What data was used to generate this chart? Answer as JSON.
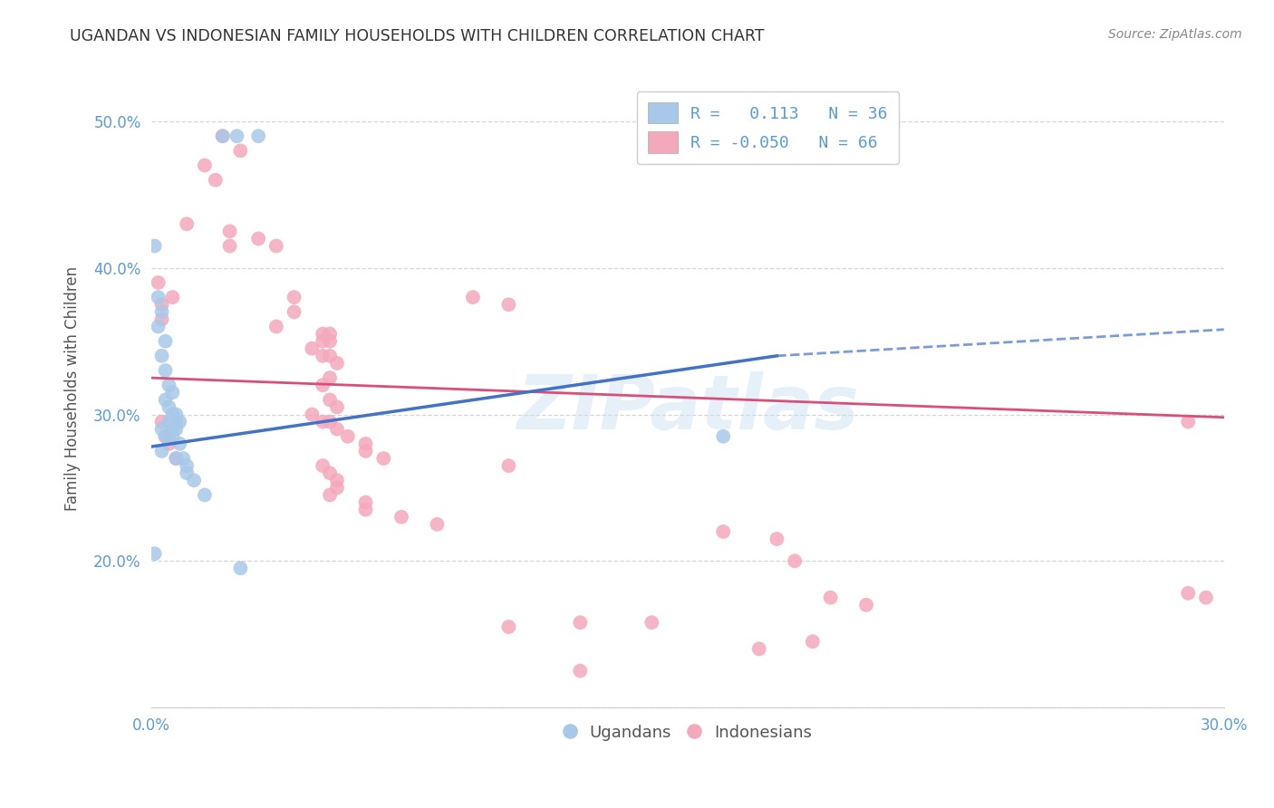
{
  "title": "UGANDAN VS INDONESIAN FAMILY HOUSEHOLDS WITH CHILDREN CORRELATION CHART",
  "source": "Source: ZipAtlas.com",
  "ylabel": "Family Households with Children",
  "legend_label1": "R =   0.113   N = 36",
  "legend_label2": "R = -0.050   N = 66",
  "legend_bottom_label1": "Ugandans",
  "legend_bottom_label2": "Indonesians",
  "ugandan_color": "#a8c8e8",
  "indonesian_color": "#f4a8bc",
  "ugandan_line_color": "#4472c4",
  "indonesian_line_color": "#d94f7a",
  "watermark": "ZIPatlas",
  "ugandan_scatter": [
    [
      0.001,
      0.415
    ],
    [
      0.02,
      0.49
    ],
    [
      0.03,
      0.49
    ],
    [
      0.024,
      0.49
    ],
    [
      0.002,
      0.38
    ],
    [
      0.003,
      0.37
    ],
    [
      0.002,
      0.36
    ],
    [
      0.004,
      0.35
    ],
    [
      0.003,
      0.34
    ],
    [
      0.004,
      0.33
    ],
    [
      0.005,
      0.32
    ],
    [
      0.006,
      0.315
    ],
    [
      0.004,
      0.31
    ],
    [
      0.005,
      0.305
    ],
    [
      0.006,
      0.3
    ],
    [
      0.007,
      0.3
    ],
    [
      0.007,
      0.295
    ],
    [
      0.005,
      0.295
    ],
    [
      0.008,
      0.295
    ],
    [
      0.006,
      0.29
    ],
    [
      0.007,
      0.29
    ],
    [
      0.003,
      0.29
    ],
    [
      0.004,
      0.285
    ],
    [
      0.005,
      0.285
    ],
    [
      0.006,
      0.285
    ],
    [
      0.008,
      0.28
    ],
    [
      0.003,
      0.275
    ],
    [
      0.007,
      0.27
    ],
    [
      0.009,
      0.27
    ],
    [
      0.01,
      0.265
    ],
    [
      0.01,
      0.26
    ],
    [
      0.012,
      0.255
    ],
    [
      0.015,
      0.245
    ],
    [
      0.001,
      0.205
    ],
    [
      0.16,
      0.285
    ],
    [
      0.025,
      0.195
    ]
  ],
  "indonesian_scatter": [
    [
      0.02,
      0.49
    ],
    [
      0.025,
      0.48
    ],
    [
      0.015,
      0.47
    ],
    [
      0.018,
      0.46
    ],
    [
      0.01,
      0.43
    ],
    [
      0.022,
      0.425
    ],
    [
      0.03,
      0.42
    ],
    [
      0.022,
      0.415
    ],
    [
      0.035,
      0.415
    ],
    [
      0.002,
      0.39
    ],
    [
      0.04,
      0.38
    ],
    [
      0.04,
      0.37
    ],
    [
      0.003,
      0.365
    ],
    [
      0.035,
      0.36
    ],
    [
      0.048,
      0.355
    ],
    [
      0.05,
      0.355
    ],
    [
      0.05,
      0.35
    ],
    [
      0.048,
      0.35
    ],
    [
      0.045,
      0.345
    ],
    [
      0.048,
      0.34
    ],
    [
      0.05,
      0.34
    ],
    [
      0.052,
      0.335
    ],
    [
      0.05,
      0.325
    ],
    [
      0.048,
      0.32
    ],
    [
      0.003,
      0.375
    ],
    [
      0.05,
      0.31
    ],
    [
      0.052,
      0.305
    ],
    [
      0.045,
      0.3
    ],
    [
      0.048,
      0.295
    ],
    [
      0.05,
      0.295
    ],
    [
      0.052,
      0.29
    ],
    [
      0.006,
      0.38
    ],
    [
      0.055,
      0.285
    ],
    [
      0.06,
      0.28
    ],
    [
      0.06,
      0.275
    ],
    [
      0.065,
      0.27
    ],
    [
      0.003,
      0.295
    ],
    [
      0.004,
      0.285
    ],
    [
      0.005,
      0.28
    ],
    [
      0.007,
      0.27
    ],
    [
      0.048,
      0.265
    ],
    [
      0.05,
      0.26
    ],
    [
      0.052,
      0.255
    ],
    [
      0.052,
      0.25
    ],
    [
      0.05,
      0.245
    ],
    [
      0.06,
      0.24
    ],
    [
      0.06,
      0.235
    ],
    [
      0.1,
      0.265
    ],
    [
      0.07,
      0.23
    ],
    [
      0.08,
      0.225
    ],
    [
      0.16,
      0.22
    ],
    [
      0.175,
      0.215
    ],
    [
      0.18,
      0.2
    ],
    [
      0.19,
      0.175
    ],
    [
      0.2,
      0.17
    ],
    [
      0.12,
      0.158
    ],
    [
      0.185,
      0.145
    ],
    [
      0.12,
      0.125
    ],
    [
      0.14,
      0.158
    ],
    [
      0.17,
      0.14
    ],
    [
      0.29,
      0.295
    ],
    [
      0.29,
      0.178
    ],
    [
      0.295,
      0.175
    ],
    [
      0.1,
      0.375
    ],
    [
      0.09,
      0.38
    ],
    [
      0.1,
      0.155
    ]
  ],
  "xlim": [
    0.0,
    0.3
  ],
  "ylim": [
    0.1,
    0.535
  ],
  "xticks": [
    0.0,
    0.05,
    0.1,
    0.15,
    0.2,
    0.25,
    0.3
  ],
  "yticks": [
    0.1,
    0.2,
    0.3,
    0.4,
    0.5
  ],
  "ugandan_line": [
    [
      0.0,
      0.278
    ],
    [
      0.3,
      0.358
    ]
  ],
  "indonesian_line": [
    [
      0.0,
      0.325
    ],
    [
      0.3,
      0.298
    ]
  ],
  "ugandan_line_dashed": [
    [
      0.175,
      0.34
    ],
    [
      0.3,
      0.358
    ]
  ]
}
